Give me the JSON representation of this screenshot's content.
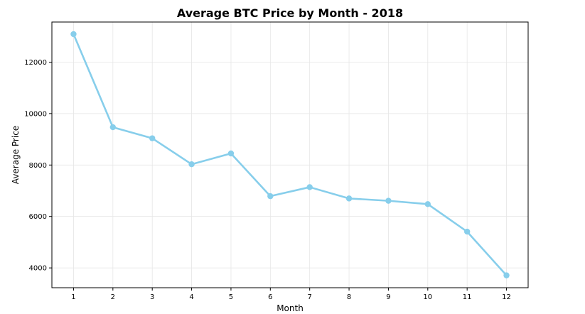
{
  "chart_data": {
    "type": "line",
    "title": "Average BTC Price by Month - 2018",
    "xlabel": "Month",
    "ylabel": "Average Price",
    "x": [
      1,
      2,
      3,
      4,
      5,
      6,
      7,
      8,
      9,
      10,
      11,
      12
    ],
    "series": [
      {
        "name": "Average Price",
        "values": [
          13090,
          9470,
          9040,
          8030,
          8450,
          6790,
          7140,
          6700,
          6610,
          6480,
          5410,
          3710
        ]
      }
    ],
    "xticks": [
      "1",
      "2",
      "3",
      "4",
      "5",
      "6",
      "7",
      "8",
      "9",
      "10",
      "11",
      "12"
    ],
    "yticks": [
      4000,
      6000,
      8000,
      10000,
      12000
    ],
    "xlim": [
      0.45,
      12.55
    ],
    "ylim": [
      3230,
      13560
    ],
    "grid": true,
    "color": "#87CEEB"
  }
}
